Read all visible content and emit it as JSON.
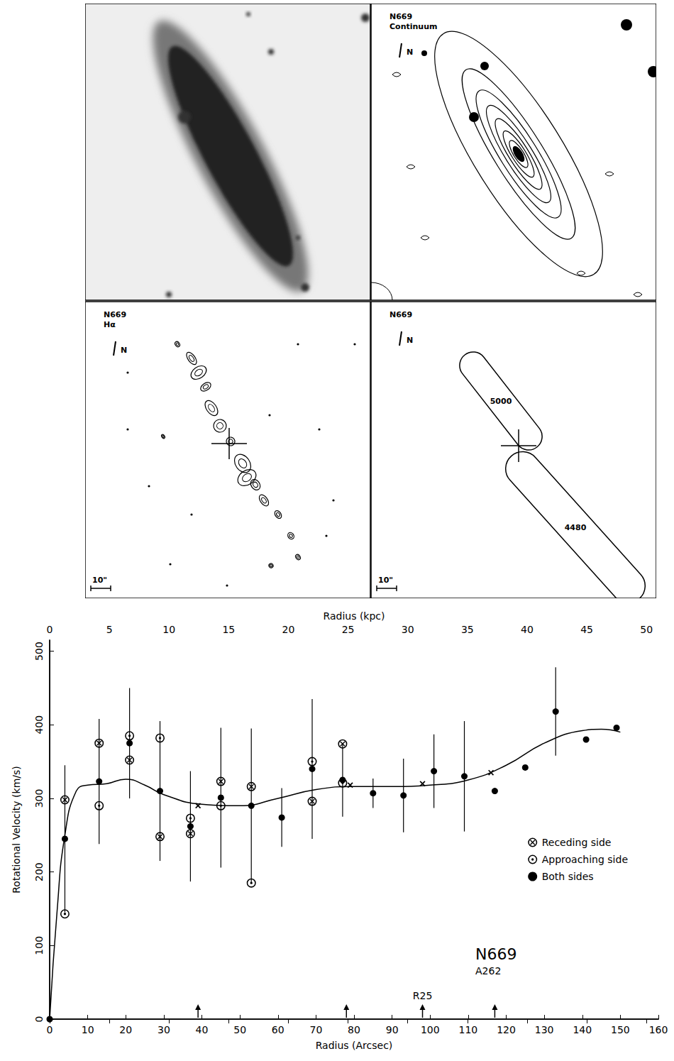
{
  "panels": [
    {
      "image": true
    },
    {
      "labels": [
        "N669",
        "Continuum"
      ],
      "north": "N"
    },
    {
      "labels": [
        "N669",
        "Hα"
      ],
      "north": "N",
      "scale": "10\""
    },
    {
      "labels": [
        "N669"
      ],
      "north": "N",
      "scale": "10\"",
      "contours": [
        {
          "label": "5000"
        },
        {
          "label": "4480"
        }
      ]
    }
  ],
  "chart_data": {
    "type": "scatter",
    "title": "N669",
    "subtitle": "A262",
    "x_label": "Radius (Arcsec)",
    "x2_label": "Radius (kpc)",
    "y_label": "Rotational Velocity (km/s)",
    "xlim": [
      0,
      160
    ],
    "xticks": [
      0,
      10,
      20,
      30,
      40,
      50,
      60,
      70,
      80,
      90,
      100,
      110,
      120,
      130,
      140,
      150,
      160
    ],
    "x2lim": [
      0,
      51
    ],
    "x2ticks": [
      0,
      5,
      10,
      15,
      20,
      25,
      30,
      35,
      40,
      45,
      50
    ],
    "ylim": [
      0,
      515
    ],
    "yticks": [
      0,
      100,
      200,
      300,
      400,
      500
    ],
    "grid": false,
    "legend": "right",
    "arrows": [
      {
        "x": 39
      },
      {
        "x": 78
      },
      {
        "x": 98,
        "label": "R25"
      },
      {
        "x": 117
      }
    ],
    "series": [
      {
        "type": "line",
        "line_style": "solid",
        "color": "#000000",
        "x": [
          0,
          2,
          4,
          7,
          10,
          15,
          20,
          25,
          30,
          40,
          50,
          60,
          70,
          80,
          90,
          100,
          110,
          120,
          130,
          140,
          145,
          150
        ],
        "values": [
          0,
          150,
          250,
          310,
          318,
          320,
          326,
          318,
          305,
          292,
          290,
          300,
          312,
          316,
          316,
          318,
          325,
          345,
          375,
          392,
          394,
          390
        ]
      },
      {
        "name": "Receding side",
        "type": "scatter",
        "marker": "circle-x",
        "color": "#000000",
        "x": [
          4,
          13,
          21,
          29,
          37,
          45,
          53,
          69,
          77
        ],
        "values": [
          298,
          375,
          352,
          248,
          252,
          323,
          316,
          296,
          374
        ]
      },
      {
        "name": "Approaching side",
        "type": "scatter",
        "marker": "circle-dot",
        "color": "#000000",
        "x": [
          4,
          13,
          21,
          29,
          37,
          45,
          53,
          69,
          77
        ],
        "values": [
          143,
          290,
          385,
          382,
          273,
          290,
          185,
          350,
          321
        ]
      },
      {
        "name": "Both sides",
        "type": "scatter",
        "marker": "circle",
        "color": "#000000",
        "x": [
          0,
          4,
          13,
          21,
          29,
          37,
          45,
          53,
          61,
          69,
          77,
          85,
          93,
          101,
          109,
          117,
          125,
          133,
          141,
          149
        ],
        "values": [
          0,
          245,
          323,
          375,
          310,
          262,
          301,
          290,
          274,
          340,
          325,
          307,
          304,
          337,
          330,
          310,
          342,
          418,
          380,
          396
        ],
        "errors": [
          null,
          100,
          85,
          75,
          95,
          75,
          95,
          105,
          40,
          95,
          50,
          20,
          50,
          50,
          75,
          null,
          null,
          60,
          null,
          null
        ]
      },
      {
        "type": "scatter",
        "marker": "x",
        "color": "#000000",
        "x": [
          39,
          79,
          98,
          116
        ],
        "values": [
          290,
          318,
          320,
          335
        ]
      }
    ]
  }
}
